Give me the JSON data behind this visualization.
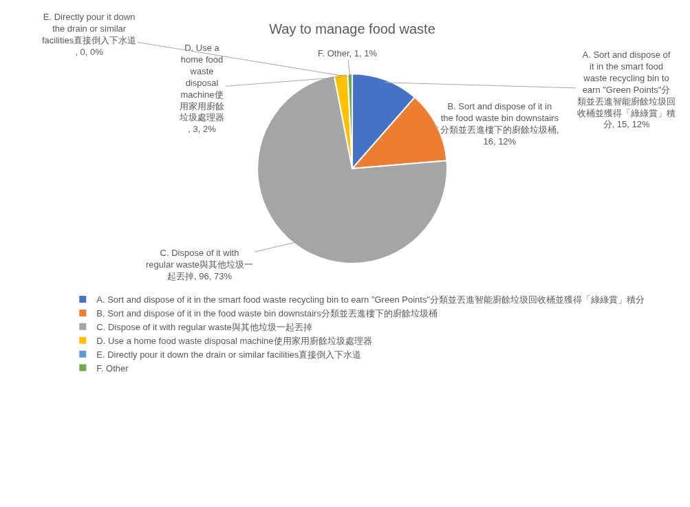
{
  "chart_data": {
    "type": "pie",
    "title": "Way to manage food waste",
    "categories": [
      "A. Sort and dispose of it in the smart food waste recycling bin to earn \"Green Points\"分類並丟進智能廚餘垃圾回收桶並獲得「綠綠賞」積分",
      "B. Sort and dispose of it in the food waste bin downstairs分類並丟進樓下的廚餘垃圾桶",
      "C. Dispose of it with regular waste與其他垃圾一起丟掉",
      "D. Use a home food waste disposal machine使用家用廚餘垃圾處理器",
      "E. Directly pour it down the drain or similar facilities直接倒入下水道",
      "F. Other"
    ],
    "values": [
      15,
      16,
      96,
      3,
      0,
      1
    ],
    "colors": [
      "#4472c4",
      "#ed7d31",
      "#a5a5a5",
      "#ffc000",
      "#5b9bd5",
      "#70ad47"
    ],
    "value_labels": [
      "A. Sort and dispose of it in the smart food waste recycling bin to earn \"Green Points\"分類並丟進智能廚餘垃圾回收桶並獲得「綠綠賞」積分, 15, 12%",
      "B. Sort and dispose of it in the food waste bin downstairs分類並丟進樓下的廚餘垃圾桶, 16, 12%",
      "C. Dispose of it with regular waste與其他垃圾一起丟掉, 96, 73%",
      "D. Use a home food waste disposal machine使用家用廚餘垃圾處理器, 3, 2%",
      "E. Directly pour it down the drain or similar facilities直接倒入下水道, 0, 0%",
      "F. Other, 1, 1%"
    ],
    "legend": "bottom"
  }
}
